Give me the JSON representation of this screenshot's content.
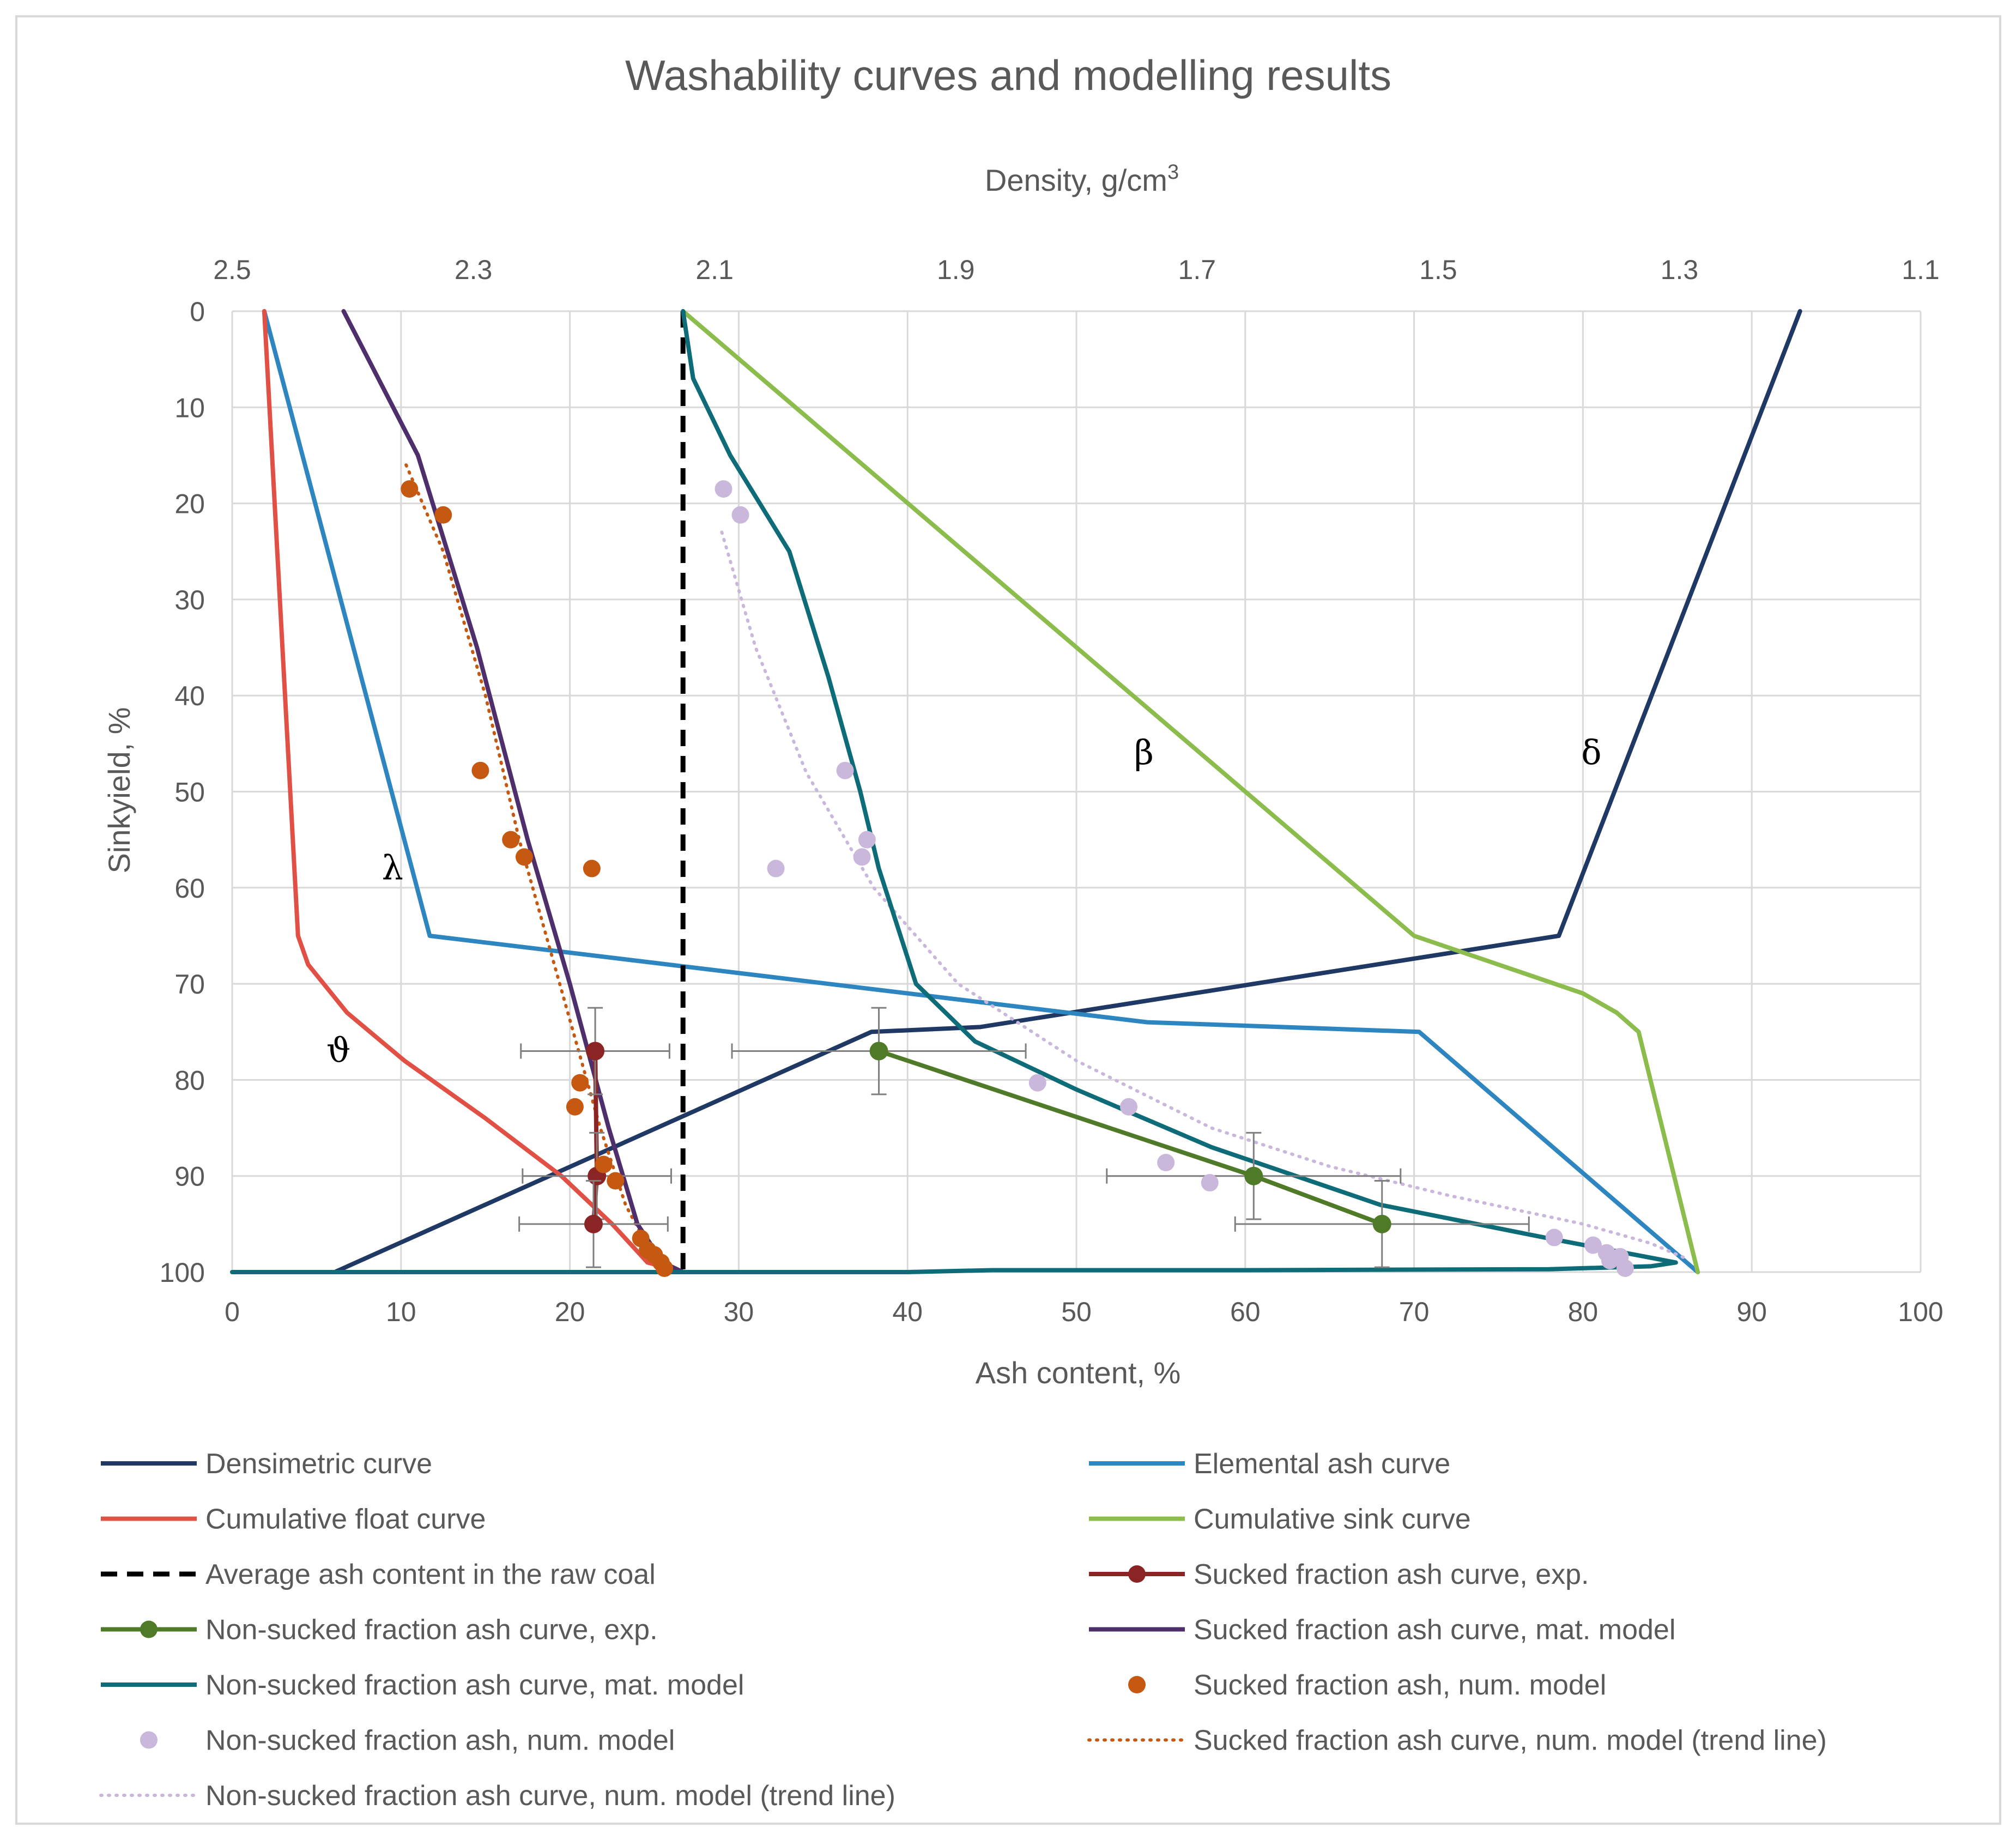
{
  "chart_data": {
    "type": "line",
    "title": "Washability curves and modelling results",
    "top_axis": {
      "label": "Density, g/cm",
      "label_superscript": "3",
      "range": [
        2.5,
        1.1
      ],
      "ticks": [
        "2.5",
        "2.3",
        "2.1",
        "1.9",
        "1.7",
        "1.5",
        "1.3",
        "1.1"
      ],
      "tick_values": [
        2.5,
        2.3,
        2.1,
        1.9,
        1.7,
        1.5,
        1.3,
        1.1
      ]
    },
    "x_axis": {
      "label": "Ash content, %",
      "range": [
        0,
        100
      ],
      "ticks": [
        "0",
        "10",
        "20",
        "30",
        "40",
        "50",
        "60",
        "70",
        "80",
        "90",
        "100"
      ],
      "tick_values": [
        0,
        10,
        20,
        30,
        40,
        50,
        60,
        70,
        80,
        90,
        100
      ]
    },
    "y_axis": {
      "label": "Sinkyield, %",
      "range": [
        0,
        100
      ],
      "inverted": true,
      "ticks": [
        "0",
        "10",
        "20",
        "30",
        "40",
        "50",
        "60",
        "70",
        "80",
        "90",
        "100"
      ],
      "tick_values": [
        0,
        10,
        20,
        30,
        40,
        50,
        60,
        70,
        80,
        90,
        100
      ]
    },
    "grid": true,
    "legend_position": "bottom",
    "annotations": [
      {
        "text": "β",
        "x": 54,
        "y": 46
      },
      {
        "text": "δ",
        "x": 80.5,
        "y": 46
      },
      {
        "text": "λ",
        "x": 9.5,
        "y": 58
      },
      {
        "text": "ϑ",
        "x": 6.3,
        "y": 77
      }
    ],
    "series": [
      {
        "name": "Densimetric curve",
        "axis": "density",
        "color": "#1f3864",
        "style": "solid",
        "points": [
          [
            1.2,
            0
          ],
          [
            1.4,
            65
          ],
          [
            1.88,
            74.5
          ],
          [
            1.97,
            75
          ],
          [
            2.415,
            100
          ]
        ]
      },
      {
        "name": "Elemental ash curve",
        "axis": "ash",
        "color": "#2e86c1",
        "style": "solid",
        "points": [
          [
            1.9,
            0
          ],
          [
            11.7,
            65
          ],
          [
            54.2,
            74
          ],
          [
            70.3,
            75
          ],
          [
            86.8,
            100
          ]
        ]
      },
      {
        "name": "Cumulative float curve",
        "axis": "ash",
        "color": "#e05045",
        "style": "solid",
        "points": [
          [
            1.9,
            0
          ],
          [
            3.9,
            65
          ],
          [
            4.5,
            68
          ],
          [
            6.8,
            73
          ],
          [
            10.2,
            78
          ],
          [
            15,
            84
          ],
          [
            19.5,
            90
          ],
          [
            22.5,
            95
          ],
          [
            24.6,
            99
          ],
          [
            26.7,
            100
          ]
        ]
      },
      {
        "name": "Cumulative sink curve",
        "axis": "ash",
        "color": "#8bbc4c",
        "style": "solid",
        "points": [
          [
            26.7,
            0
          ],
          [
            70,
            65
          ],
          [
            80,
            71
          ],
          [
            82,
            73
          ],
          [
            83.3,
            75
          ],
          [
            86.8,
            100
          ]
        ]
      },
      {
        "name": "Average ash content in the raw coal",
        "axis": "ash",
        "color": "#000000",
        "style": "dashed",
        "points": [
          [
            26.7,
            0
          ],
          [
            26.7,
            100
          ]
        ]
      },
      {
        "name": "Sucked fraction ash curve, exp.",
        "axis": "ash",
        "color": "#8b2525",
        "style": "solid-markers",
        "points": [
          [
            21.5,
            77
          ],
          [
            21.6,
            90
          ],
          [
            21.4,
            95
          ]
        ],
        "x_error": [
          4.4,
          4.4,
          4.4
        ],
        "y_error": [
          4.5,
          4.5,
          4.5
        ]
      },
      {
        "name": "Non-sucked fraction ash curve, exp.",
        "axis": "ash",
        "color": "#4f7a28",
        "style": "solid-markers",
        "points": [
          [
            38.3,
            77
          ],
          [
            60.5,
            90
          ],
          [
            68.1,
            95
          ]
        ],
        "x_error": [
          8.7,
          8.7,
          8.7
        ],
        "y_error": [
          4.5,
          4.5,
          4.5
        ]
      },
      {
        "name": "Sucked fraction ash curve, mat. model",
        "axis": "ash",
        "color": "#4e2f6b",
        "style": "solid",
        "points": [
          [
            6.6,
            0
          ],
          [
            11,
            15
          ],
          [
            14.5,
            35
          ],
          [
            17.5,
            55
          ],
          [
            20,
            70
          ],
          [
            22.3,
            85
          ],
          [
            24,
            95
          ],
          [
            25.5,
            99
          ],
          [
            26.7,
            100
          ]
        ]
      },
      {
        "name": "Non-sucked fraction ash curve, mat. model",
        "axis": "ash",
        "color": "#0e6b78",
        "style": "solid",
        "points": [
          [
            26.7,
            0
          ],
          [
            27.3,
            7
          ],
          [
            29.5,
            15
          ],
          [
            33,
            25
          ],
          [
            35.3,
            38
          ],
          [
            37.2,
            50
          ],
          [
            38.3,
            58
          ],
          [
            40.5,
            70
          ],
          [
            44,
            76
          ],
          [
            50,
            81
          ],
          [
            58,
            87
          ],
          [
            68,
            93
          ],
          [
            78,
            96.5
          ],
          [
            85.5,
            99
          ],
          [
            84,
            99.4
          ],
          [
            78,
            99.7
          ],
          [
            60,
            99.8
          ],
          [
            45,
            99.8
          ],
          [
            40,
            100
          ],
          [
            0,
            100
          ]
        ]
      },
      {
        "name": "Sucked fraction ash, num. model",
        "axis": "ash",
        "color": "#c65911",
        "style": "markers",
        "points": [
          [
            10.5,
            18.5
          ],
          [
            12.5,
            21.2
          ],
          [
            14.7,
            47.8
          ],
          [
            16.5,
            55
          ],
          [
            17.3,
            56.8
          ],
          [
            21.3,
            58
          ],
          [
            20.6,
            80.3
          ],
          [
            20.3,
            82.8
          ],
          [
            22,
            88.8
          ],
          [
            22.7,
            90.5
          ],
          [
            24.2,
            96.5
          ],
          [
            24.6,
            97.7
          ],
          [
            25,
            98.2
          ],
          [
            25.4,
            99
          ],
          [
            25.6,
            99.6
          ]
        ]
      },
      {
        "name": "Non-sucked fraction ash, num. model",
        "axis": "ash",
        "color": "#c9b8db",
        "style": "markers",
        "points": [
          [
            29.1,
            18.5
          ],
          [
            30.1,
            21.2
          ],
          [
            36.3,
            47.8
          ],
          [
            37.6,
            55
          ],
          [
            37.3,
            56.8
          ],
          [
            32.2,
            58
          ],
          [
            47.7,
            80.3
          ],
          [
            53.1,
            82.8
          ],
          [
            55.3,
            88.6
          ],
          [
            57.9,
            90.7
          ],
          [
            78.3,
            96.4
          ],
          [
            80.6,
            97.2
          ],
          [
            81.4,
            98
          ],
          [
            82.2,
            98.4
          ],
          [
            81.6,
            98.8
          ],
          [
            82.5,
            99.6
          ]
        ]
      },
      {
        "name": "Sucked fraction ash curve, num. model (trend line)",
        "axis": "ash",
        "color": "#c65911",
        "style": "dotted",
        "points": [
          [
            10.3,
            16
          ],
          [
            12.5,
            25
          ],
          [
            15,
            40
          ],
          [
            17,
            55
          ],
          [
            18.6,
            65
          ],
          [
            20.2,
            75
          ],
          [
            21.8,
            85
          ],
          [
            23.3,
            93
          ],
          [
            24.5,
            97
          ],
          [
            25.8,
            100
          ]
        ]
      },
      {
        "name": "Non-sucked fraction ash curve, num. model (trend line)",
        "axis": "ash",
        "color": "#c9b8db",
        "style": "dotted",
        "points": [
          [
            29,
            23
          ],
          [
            31,
            35
          ],
          [
            34,
            48
          ],
          [
            38,
            60
          ],
          [
            43,
            70
          ],
          [
            50,
            78
          ],
          [
            58,
            85
          ],
          [
            65,
            89
          ],
          [
            72,
            92
          ],
          [
            80,
            95
          ],
          [
            84,
            97
          ],
          [
            86,
            98.5
          ]
        ]
      }
    ]
  }
}
